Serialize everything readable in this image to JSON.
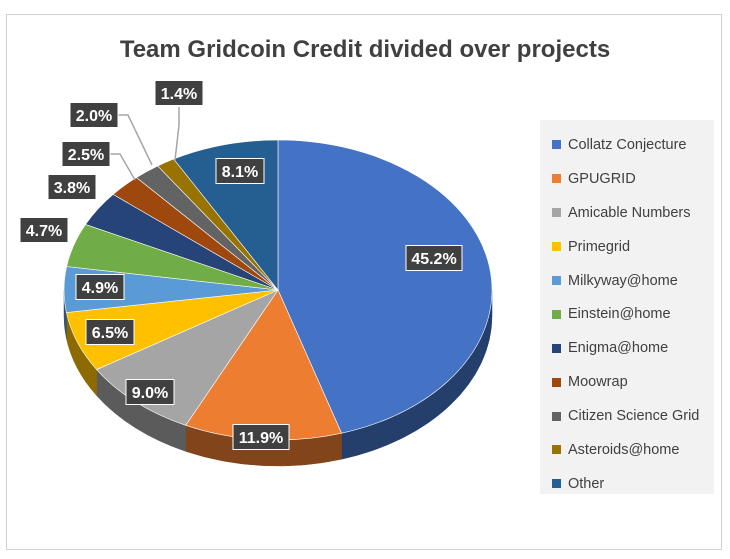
{
  "chart_data": {
    "type": "pie",
    "title": "Team Gridcoin Credit divided over projects",
    "legend_position": "right",
    "slices": [
      {
        "name": "Collatz Conjecture",
        "value": 45.2,
        "label": "45.2%",
        "color": "#4472C4"
      },
      {
        "name": "GPUGRID",
        "value": 11.9,
        "label": "11.9%",
        "color": "#ED7D31"
      },
      {
        "name": "Amicable Numbers",
        "value": 9.0,
        "label": "9.0%",
        "color": "#A5A5A5"
      },
      {
        "name": "Primegrid",
        "value": 6.5,
        "label": "6.5%",
        "color": "#FFC000"
      },
      {
        "name": "Milkyway@home",
        "value": 4.9,
        "label": "4.9%",
        "color": "#5B9BD5"
      },
      {
        "name": "Einstein@home",
        "value": 4.7,
        "label": "4.7%",
        "color": "#70AD47"
      },
      {
        "name": "Enigma@home",
        "value": 3.8,
        "label": "3.8%",
        "color": "#264478"
      },
      {
        "name": "Moowrap",
        "value": 2.5,
        "label": "2.5%",
        "color": "#9E480E"
      },
      {
        "name": "Citizen Science Grid",
        "value": 2.0,
        "label": "2.0%",
        "color": "#636363"
      },
      {
        "name": "Asteroids@home",
        "value": 1.4,
        "label": "1.4%",
        "color": "#997300"
      },
      {
        "name": "Other",
        "value": 8.1,
        "label": "8.1%",
        "color": "#255E91"
      }
    ]
  }
}
